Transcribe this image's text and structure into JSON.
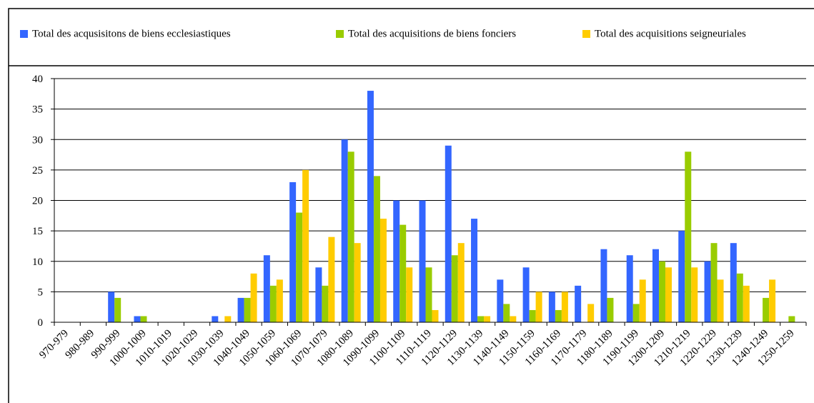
{
  "chart_data": {
    "type": "bar",
    "categories": [
      "970-979",
      "980-989",
      "990-999",
      "1000-1009",
      "1010-1019",
      "1020-1029",
      "1030-1039",
      "1040-1049",
      "1050-1059",
      "1060-1069",
      "1070-1079",
      "1080-1089",
      "1090-1099",
      "1100-1109",
      "1110-1119",
      "1120-1129",
      "1130-1139",
      "1140-1149",
      "1150-1159",
      "1160-1169",
      "1170-1179",
      "1180-1189",
      "1190-1199",
      "1200-1209",
      "1210-1219",
      "1220-1229",
      "1230-1239",
      "1240-1249",
      "1250-1259"
    ],
    "series": [
      {
        "name": "Total des acqusisitons de biens ecclesiastiques",
        "color": "#3366ff",
        "values": [
          0,
          0,
          5,
          1,
          0,
          0,
          1,
          4,
          11,
          23,
          9,
          30,
          38,
          20,
          20,
          29,
          17,
          7,
          9,
          5,
          6,
          12,
          11,
          12,
          15,
          10,
          13,
          0,
          0
        ]
      },
      {
        "name": "Total des acquisitions de biens fonciers",
        "color": "#99cc00",
        "values": [
          0,
          0,
          4,
          1,
          0,
          0,
          0,
          4,
          6,
          18,
          6,
          28,
          24,
          16,
          9,
          11,
          1,
          3,
          2,
          2,
          0,
          4,
          3,
          10,
          28,
          13,
          8,
          4,
          1
        ]
      },
      {
        "name": "Total des acquisitions seigneuriales",
        "color": "#ffcc00",
        "values": [
          0,
          0,
          0,
          0,
          0,
          0,
          1,
          8,
          7,
          25,
          14,
          13,
          17,
          9,
          2,
          13,
          1,
          1,
          5,
          5,
          3,
          0,
          7,
          9,
          9,
          7,
          6,
          7,
          0
        ]
      }
    ],
    "ylim": [
      0,
      40
    ],
    "yticks": [
      0,
      5,
      10,
      15,
      20,
      25,
      30,
      35,
      40
    ],
    "grid": true,
    "legend": "top"
  }
}
